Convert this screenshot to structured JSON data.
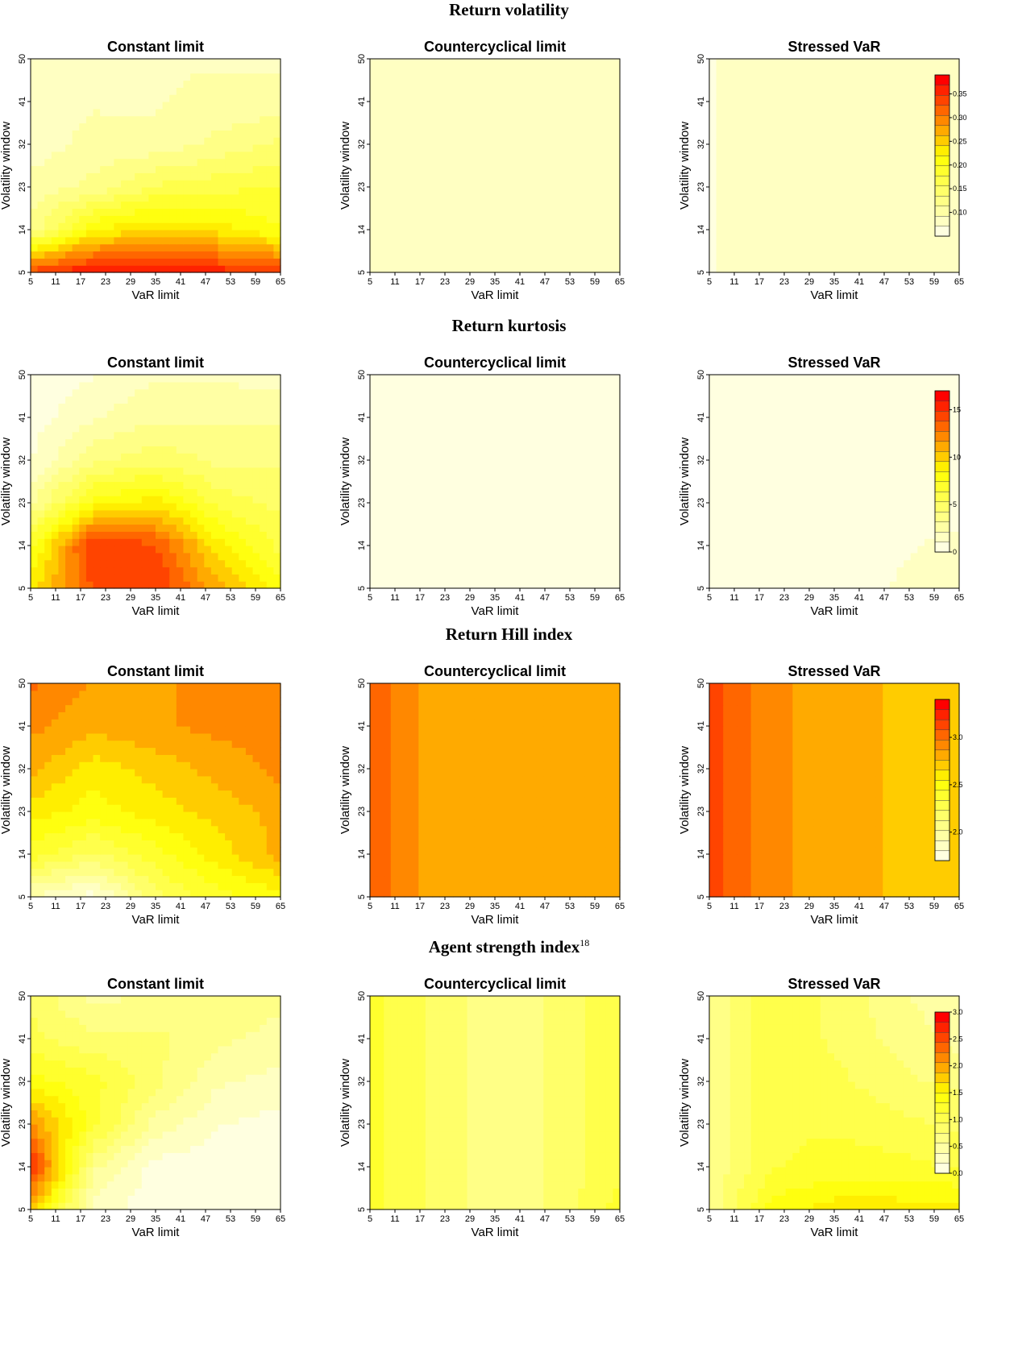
{
  "sections": [
    {
      "title": "Return volatility",
      "footnote": ""
    },
    {
      "title": "Return kurtosis",
      "footnote": ""
    },
    {
      "title": "Return Hill index",
      "footnote": ""
    },
    {
      "title": "Agent strength index",
      "footnote": "18"
    }
  ],
  "colors": {
    "low": "#ffffe0",
    "mid": "#ffff00",
    "high": "#ff0000"
  },
  "chart_data": [
    {
      "type": "heatmap",
      "section": 0,
      "title": "Constant limit",
      "xlabel": "VaR limit",
      "ylabel": "Volatility window",
      "x_ticks": [
        5,
        11,
        17,
        23,
        29,
        35,
        41,
        47,
        53,
        59,
        65
      ],
      "y_ticks": [
        5,
        14,
        23,
        32,
        41,
        50
      ],
      "xlim": [
        5,
        65
      ],
      "ylim": [
        5,
        50
      ],
      "x": [
        5,
        20,
        35,
        50,
        65
      ],
      "y": [
        5,
        14,
        23,
        32,
        41,
        50
      ],
      "z": [
        [
          0.34,
          0.37,
          0.38,
          0.36,
          0.34
        ],
        [
          0.12,
          0.22,
          0.24,
          0.23,
          0.2
        ],
        [
          0.1,
          0.12,
          0.16,
          0.17,
          0.18
        ],
        [
          0.08,
          0.1,
          0.1,
          0.12,
          0.14
        ],
        [
          0.08,
          0.09,
          0.09,
          0.1,
          0.1
        ],
        [
          0.07,
          0.09,
          0.09,
          0.09,
          0.09
        ]
      ]
    },
    {
      "type": "heatmap",
      "section": 0,
      "title": "Countercyclical limit",
      "xlabel": "VaR limit",
      "ylabel": "Volatility window",
      "x_ticks": [
        5,
        11,
        17,
        23,
        29,
        35,
        41,
        47,
        53,
        59,
        65
      ],
      "y_ticks": [
        5,
        14,
        23,
        32,
        41,
        50
      ],
      "xlim": [
        5,
        65
      ],
      "ylim": [
        5,
        50
      ],
      "x": [
        5,
        20,
        35,
        50,
        65
      ],
      "y": [
        5,
        14,
        23,
        32,
        41,
        50
      ],
      "z": [
        [
          0.08,
          0.09,
          0.09,
          0.09,
          0.09
        ],
        [
          0.08,
          0.09,
          0.09,
          0.09,
          0.09
        ],
        [
          0.08,
          0.09,
          0.09,
          0.09,
          0.09
        ],
        [
          0.08,
          0.09,
          0.09,
          0.09,
          0.09
        ],
        [
          0.08,
          0.09,
          0.09,
          0.09,
          0.09
        ],
        [
          0.08,
          0.09,
          0.09,
          0.09,
          0.09
        ]
      ]
    },
    {
      "type": "heatmap",
      "section": 0,
      "title": "Stressed VaR",
      "xlabel": "VaR limit",
      "ylabel": "Volatility window",
      "x_ticks": [
        5,
        11,
        17,
        23,
        29,
        35,
        41,
        47,
        53,
        59,
        65
      ],
      "y_ticks": [
        5,
        14,
        23,
        32,
        41,
        50
      ],
      "xlim": [
        5,
        65
      ],
      "ylim": [
        5,
        50
      ],
      "x": [
        5,
        20,
        35,
        50,
        65
      ],
      "y": [
        5,
        14,
        23,
        32,
        41,
        50
      ],
      "z": [
        [
          0.07,
          0.09,
          0.09,
          0.09,
          0.09
        ],
        [
          0.07,
          0.09,
          0.09,
          0.09,
          0.09
        ],
        [
          0.07,
          0.09,
          0.09,
          0.09,
          0.09
        ],
        [
          0.07,
          0.09,
          0.09,
          0.09,
          0.09
        ],
        [
          0.07,
          0.09,
          0.09,
          0.09,
          0.09
        ],
        [
          0.07,
          0.09,
          0.09,
          0.09,
          0.09
        ]
      ],
      "legend": {
        "min": 0.05,
        "max": 0.39,
        "ticks": [
          0.1,
          0.15,
          0.2,
          0.25,
          0.3,
          0.35
        ]
      }
    },
    {
      "type": "heatmap",
      "section": 1,
      "title": "Constant limit",
      "xlabel": "VaR limit",
      "ylabel": "Volatility window",
      "x_ticks": [
        5,
        11,
        17,
        23,
        29,
        35,
        41,
        47,
        53,
        59,
        65
      ],
      "y_ticks": [
        5,
        14,
        23,
        32,
        41,
        50
      ],
      "xlim": [
        5,
        65
      ],
      "ylim": [
        5,
        50
      ],
      "x": [
        5,
        20,
        35,
        50,
        65
      ],
      "y": [
        5,
        14,
        23,
        32,
        41,
        50
      ],
      "z": [
        [
          9,
          14,
          15,
          11,
          8
        ],
        [
          7,
          15,
          14,
          9,
          6
        ],
        [
          3,
          8,
          9,
          6,
          5
        ],
        [
          1,
          4,
          5,
          4,
          4
        ],
        [
          0.5,
          2,
          3,
          3,
          3
        ],
        [
          0,
          1,
          2,
          2,
          1.5
        ]
      ]
    },
    {
      "type": "heatmap",
      "section": 1,
      "title": "Countercyclical limit",
      "xlabel": "VaR limit",
      "ylabel": "Volatility window",
      "x_ticks": [
        5,
        11,
        17,
        23,
        29,
        35,
        41,
        47,
        53,
        59,
        65
      ],
      "y_ticks": [
        5,
        14,
        23,
        32,
        41,
        50
      ],
      "xlim": [
        5,
        65
      ],
      "ylim": [
        5,
        50
      ],
      "x": [
        5,
        20,
        35,
        50,
        65
      ],
      "y": [
        5,
        14,
        23,
        32,
        41,
        50
      ],
      "z": [
        [
          0.2,
          0.2,
          0.2,
          0.2,
          0.2
        ],
        [
          0.2,
          0.2,
          0.2,
          0.2,
          0.2
        ],
        [
          0.2,
          0.2,
          0.2,
          0.2,
          0.2
        ],
        [
          0.2,
          0.2,
          0.2,
          0.2,
          0.2
        ],
        [
          0.2,
          0.2,
          0.2,
          0.2,
          0.2
        ],
        [
          0.2,
          0.2,
          0.2,
          0.2,
          0.2
        ]
      ]
    },
    {
      "type": "heatmap",
      "section": 1,
      "title": "Stressed VaR",
      "xlabel": "VaR limit",
      "ylabel": "Volatility window",
      "x_ticks": [
        5,
        11,
        17,
        23,
        29,
        35,
        41,
        47,
        53,
        59,
        65
      ],
      "y_ticks": [
        5,
        14,
        23,
        32,
        41,
        50
      ],
      "xlim": [
        5,
        65
      ],
      "ylim": [
        5,
        50
      ],
      "x": [
        5,
        20,
        35,
        50,
        65
      ],
      "y": [
        5,
        14,
        23,
        32,
        41,
        50
      ],
      "z": [
        [
          0.2,
          0.2,
          0.3,
          1.2,
          1.8
        ],
        [
          0.2,
          0.2,
          0.2,
          0.8,
          1.5
        ],
        [
          0.2,
          0.2,
          0.2,
          0.3,
          0.5
        ],
        [
          0.2,
          0.2,
          0.2,
          0.2,
          0.3
        ],
        [
          0.2,
          0.2,
          0.2,
          0.2,
          0.2
        ],
        [
          0.2,
          0.2,
          0.2,
          0.2,
          0.2
        ]
      ],
      "legend": {
        "min": 0,
        "max": 17,
        "ticks": [
          0,
          5,
          10,
          15
        ]
      }
    },
    {
      "type": "heatmap",
      "section": 2,
      "title": "Constant limit",
      "xlabel": "VaR limit",
      "ylabel": "Volatility window",
      "x_ticks": [
        5,
        11,
        17,
        23,
        29,
        35,
        41,
        47,
        53,
        59,
        65
      ],
      "y_ticks": [
        5,
        14,
        23,
        32,
        41,
        50
      ],
      "xlim": [
        5,
        65
      ],
      "ylim": [
        5,
        50
      ],
      "x": [
        5,
        20,
        35,
        50,
        65
      ],
      "y": [
        5,
        14,
        23,
        32,
        41,
        50
      ],
      "z": [
        [
          1.9,
          1.75,
          2.2,
          2.4,
          2.5
        ],
        [
          2.4,
          2.2,
          2.4,
          2.6,
          2.8
        ],
        [
          2.6,
          2.5,
          2.6,
          2.7,
          2.8
        ],
        [
          2.8,
          2.6,
          2.7,
          2.8,
          2.9
        ],
        [
          2.9,
          2.8,
          2.85,
          2.9,
          2.9
        ],
        [
          3.0,
          2.85,
          2.85,
          2.9,
          2.9
        ]
      ]
    },
    {
      "type": "heatmap",
      "section": 2,
      "title": "Countercyclical limit",
      "xlabel": "VaR limit",
      "ylabel": "Volatility window",
      "x_ticks": [
        5,
        11,
        17,
        23,
        29,
        35,
        41,
        47,
        53,
        59,
        65
      ],
      "y_ticks": [
        5,
        14,
        23,
        32,
        41,
        50
      ],
      "xlim": [
        5,
        65
      ],
      "ylim": [
        5,
        50
      ],
      "x": [
        5,
        20,
        35,
        50,
        65
      ],
      "y": [
        5,
        14,
        23,
        32,
        41,
        50
      ],
      "z": [
        [
          3.05,
          2.8,
          2.85,
          2.85,
          2.85
        ],
        [
          3.05,
          2.8,
          2.85,
          2.85,
          2.85
        ],
        [
          3.05,
          2.8,
          2.85,
          2.85,
          2.85
        ],
        [
          3.05,
          2.8,
          2.85,
          2.85,
          2.85
        ],
        [
          3.05,
          2.8,
          2.85,
          2.85,
          2.85
        ],
        [
          3.05,
          2.8,
          2.85,
          2.85,
          2.85
        ]
      ]
    },
    {
      "type": "heatmap",
      "section": 2,
      "title": "Stressed VaR",
      "xlabel": "VaR limit",
      "ylabel": "Volatility window",
      "x_ticks": [
        5,
        11,
        17,
        23,
        29,
        35,
        41,
        47,
        53,
        59,
        65
      ],
      "y_ticks": [
        5,
        14,
        23,
        32,
        41,
        50
      ],
      "xlim": [
        5,
        65
      ],
      "ylim": [
        5,
        50
      ],
      "x": [
        5,
        20,
        35,
        50,
        65
      ],
      "y": [
        5,
        14,
        23,
        32,
        41,
        50
      ],
      "z": [
        [
          3.15,
          2.9,
          2.8,
          2.75,
          2.75
        ],
        [
          3.15,
          2.9,
          2.8,
          2.75,
          2.75
        ],
        [
          3.15,
          2.9,
          2.8,
          2.75,
          2.75
        ],
        [
          3.15,
          2.9,
          2.8,
          2.75,
          2.75
        ],
        [
          3.15,
          2.9,
          2.8,
          2.75,
          2.75
        ],
        [
          3.15,
          2.9,
          2.8,
          2.75,
          2.75
        ]
      ],
      "legend": {
        "min": 1.7,
        "max": 3.4,
        "ticks": [
          2.0,
          2.5,
          3.0
        ]
      }
    },
    {
      "type": "heatmap",
      "section": 3,
      "title": "Constant limit",
      "xlabel": "VaR limit",
      "ylabel": "Volatility window",
      "x_ticks": [
        5,
        11,
        17,
        23,
        29,
        35,
        41,
        47,
        53,
        59,
        65
      ],
      "y_ticks": [
        5,
        14,
        23,
        32,
        41,
        50
      ],
      "xlim": [
        5,
        65
      ],
      "ylim": [
        5,
        50
      ],
      "x": [
        5,
        20,
        35,
        50,
        65
      ],
      "y": [
        5,
        14,
        23,
        32,
        41,
        50
      ],
      "z": [
        [
          1.8,
          0.3,
          0.05,
          0.05,
          0.05
        ],
        [
          2.7,
          0.6,
          0.1,
          0.05,
          0.05
        ],
        [
          2.1,
          1.2,
          0.5,
          0.2,
          0.1
        ],
        [
          1.4,
          1.2,
          0.8,
          0.4,
          0.3
        ],
        [
          1.0,
          0.8,
          0.8,
          0.6,
          0.5
        ],
        [
          0.9,
          0.5,
          0.6,
          0.7,
          0.6
        ]
      ]
    },
    {
      "type": "heatmap",
      "section": 3,
      "title": "Countercyclical limit",
      "xlabel": "VaR limit",
      "ylabel": "Volatility window",
      "x_ticks": [
        5,
        11,
        17,
        23,
        29,
        35,
        41,
        47,
        53,
        59,
        65
      ],
      "y_ticks": [
        5,
        14,
        23,
        32,
        41,
        50
      ],
      "xlim": [
        5,
        65
      ],
      "ylim": [
        5,
        50
      ],
      "x": [
        5,
        20,
        35,
        50,
        65
      ],
      "y": [
        5,
        14,
        23,
        32,
        41,
        50
      ],
      "z": [
        [
          1.2,
          0.9,
          0.6,
          0.8,
          1.2
        ],
        [
          1.2,
          0.9,
          0.6,
          0.8,
          1.1
        ],
        [
          1.2,
          0.9,
          0.6,
          0.8,
          1.1
        ],
        [
          1.2,
          0.9,
          0.6,
          0.8,
          1.1
        ],
        [
          1.2,
          0.9,
          0.6,
          0.8,
          1.1
        ],
        [
          1.2,
          0.9,
          0.6,
          0.8,
          1.1
        ]
      ]
    },
    {
      "type": "heatmap",
      "section": 3,
      "title": "Stressed VaR",
      "xlabel": "VaR limit",
      "ylabel": "Volatility window",
      "x_ticks": [
        5,
        11,
        17,
        23,
        29,
        35,
        41,
        47,
        53,
        59,
        65
      ],
      "y_ticks": [
        5,
        14,
        23,
        32,
        41,
        50
      ],
      "xlim": [
        5,
        65
      ],
      "ylim": [
        5,
        50
      ],
      "x": [
        5,
        20,
        35,
        50,
        65
      ],
      "y": [
        5,
        14,
        23,
        32,
        41,
        50
      ],
      "z": [
        [
          0.6,
          1.4,
          1.6,
          1.6,
          1.6
        ],
        [
          0.6,
          1.1,
          1.2,
          1.2,
          1.1
        ],
        [
          0.6,
          1.1,
          1.1,
          1.0,
          0.9
        ],
        [
          0.6,
          1.1,
          1.0,
          0.8,
          0.7
        ],
        [
          0.6,
          1.1,
          0.9,
          0.7,
          0.5
        ],
        [
          0.6,
          1.1,
          0.9,
          0.6,
          0.4
        ]
      ],
      "legend": {
        "min": 0,
        "max": 3.0,
        "ticks": [
          0.0,
          0.5,
          1.0,
          1.5,
          2.0,
          2.5,
          3.0
        ]
      }
    }
  ]
}
